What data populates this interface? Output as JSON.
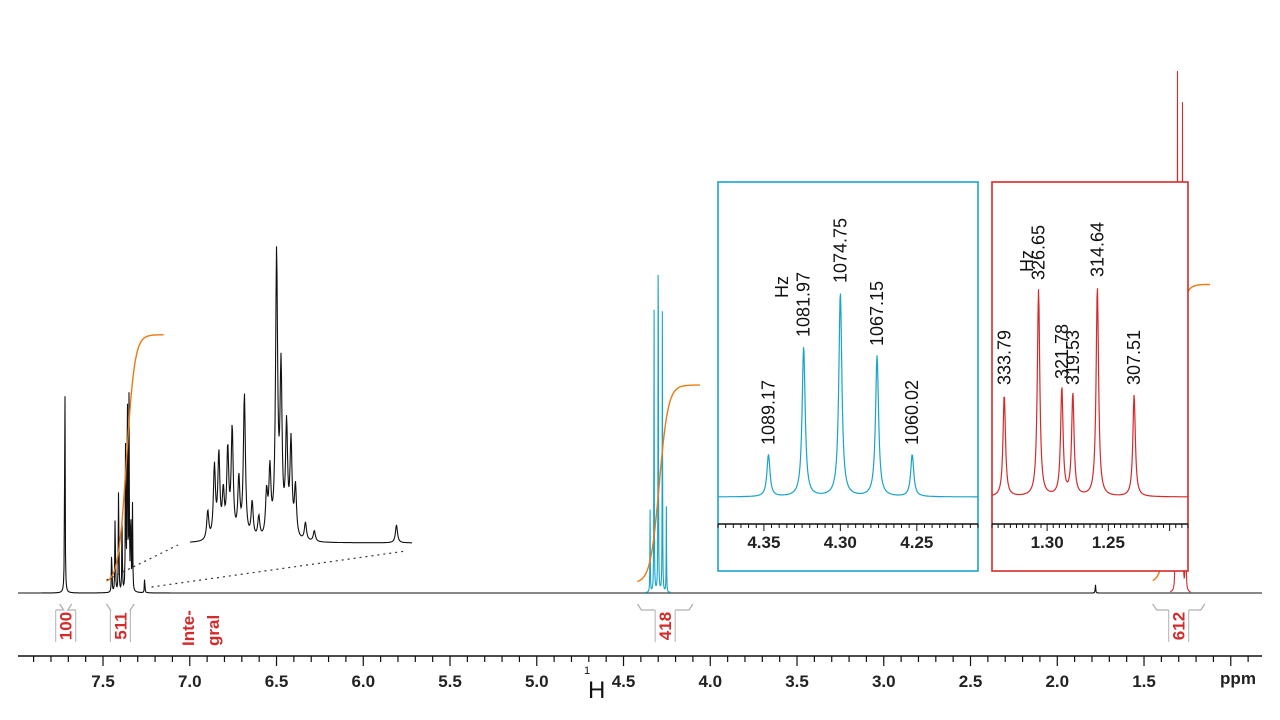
{
  "chart_data": {
    "type": "line",
    "xlabel": "ppm",
    "nucleus": {
      "mass": "1",
      "symbol": "H"
    },
    "xlim": [
      0.82,
      7.99
    ],
    "x_ticks": [
      7.5,
      7.0,
      6.5,
      6.0,
      5.5,
      5.0,
      4.5,
      4.0,
      3.5,
      3.0,
      2.5,
      2.0,
      1.5
    ],
    "x_tick_labels": [
      "7.5",
      "7.0",
      "6.5",
      "6.0",
      "5.5",
      "5.0",
      "4.5",
      "4.0",
      "3.5",
      "3.0",
      "2.5",
      "2.0",
      "1.5"
    ],
    "colors": {
      "spectrum": "#111111",
      "quartet": "#1aa3c9",
      "triplet": "#d42a2a",
      "integral_curve": "#ea7a12",
      "integral_label": "#d42a2a",
      "bracket": "#b0b0b0"
    },
    "peaks": [
      {
        "ppm": 7.72,
        "height": 0.6,
        "color": "#111111"
      },
      {
        "ppm": 7.45,
        "height": 0.12,
        "color": "#111111"
      },
      {
        "ppm": 7.43,
        "height": 0.22,
        "color": "#111111"
      },
      {
        "ppm": 7.41,
        "height": 0.28,
        "color": "#111111"
      },
      {
        "ppm": 7.39,
        "height": 0.18,
        "color": "#111111"
      },
      {
        "ppm": 7.37,
        "height": 0.35,
        "color": "#111111"
      },
      {
        "ppm": 7.36,
        "height": 0.62,
        "color": "#111111"
      },
      {
        "ppm": 7.35,
        "height": 0.45,
        "color": "#111111"
      },
      {
        "ppm": 7.34,
        "height": 0.25,
        "color": "#111111"
      },
      {
        "ppm": 7.33,
        "height": 0.2,
        "color": "#111111"
      },
      {
        "ppm": 7.26,
        "height": 0.04,
        "color": "#111111"
      },
      {
        "ppm": 4.347,
        "height": 0.2,
        "color": "#1aa3c9"
      },
      {
        "ppm": 4.324,
        "height": 0.7,
        "color": "#1aa3c9"
      },
      {
        "ppm": 4.3,
        "height": 0.94,
        "color": "#1aa3c9"
      },
      {
        "ppm": 4.276,
        "height": 0.66,
        "color": "#1aa3c9"
      },
      {
        "ppm": 4.253,
        "height": 0.2,
        "color": "#1aa3c9"
      },
      {
        "ppm": 1.78,
        "height": 0.02,
        "color": "#111111"
      },
      {
        "ppm": 1.319,
        "height": 0.6,
        "color": "#d42a2a"
      },
      {
        "ppm": 1.307,
        "height": 1.23,
        "color": "#d42a2a"
      },
      {
        "ppm": 1.298,
        "height": 0.6,
        "color": "#d42a2a"
      },
      {
        "ppm": 1.29,
        "height": 0.6,
        "color": "#d42a2a"
      },
      {
        "ppm": 1.278,
        "height": 1.25,
        "color": "#d42a2a"
      },
      {
        "ppm": 1.26,
        "height": 0.6,
        "color": "#d42a2a"
      }
    ],
    "integrals": [
      {
        "label": "100",
        "from": 7.75,
        "to": 7.68
      },
      {
        "label": "511",
        "from": 7.48,
        "to": 7.32
      },
      {
        "label": "418",
        "from": 4.42,
        "to": 4.1
      },
      {
        "label": "612",
        "from": 1.45,
        "to": 1.15
      }
    ],
    "integral_legend": [
      "Inte-",
      "gral"
    ],
    "integral_curves": [
      {
        "from": 7.48,
        "to": 7.15,
        "base": 0.03,
        "top": 0.77
      },
      {
        "from": 4.42,
        "to": 4.06,
        "base": 0.03,
        "top": 0.62
      },
      {
        "from": 1.45,
        "to": 1.12,
        "base": 0.03,
        "top": 0.92
      }
    ],
    "aromatic_zoom": {
      "from": 7.48,
      "to": 7.22,
      "peaks": [
        {
          "pos": 0.08,
          "height": 0.08
        },
        {
          "pos": 0.11,
          "height": 0.2
        },
        {
          "pos": 0.13,
          "height": 0.23
        },
        {
          "pos": 0.15,
          "height": 0.12
        },
        {
          "pos": 0.17,
          "height": 0.24
        },
        {
          "pos": 0.19,
          "height": 0.3
        },
        {
          "pos": 0.22,
          "height": 0.16
        },
        {
          "pos": 0.245,
          "height": 0.4
        },
        {
          "pos": 0.28,
          "height": 0.1
        },
        {
          "pos": 0.31,
          "height": 0.06
        },
        {
          "pos": 0.345,
          "height": 0.12
        },
        {
          "pos": 0.36,
          "height": 0.18
        },
        {
          "pos": 0.39,
          "height": 0.78
        },
        {
          "pos": 0.41,
          "height": 0.45
        },
        {
          "pos": 0.435,
          "height": 0.3
        },
        {
          "pos": 0.455,
          "height": 0.26
        },
        {
          "pos": 0.475,
          "height": 0.14
        },
        {
          "pos": 0.52,
          "height": 0.05
        },
        {
          "pos": 0.56,
          "height": 0.03
        },
        {
          "pos": 0.93,
          "height": 0.05
        }
      ]
    },
    "inset_quartet": {
      "xlim": [
        4.38,
        4.21
      ],
      "x_ticks": [
        4.35,
        4.3,
        4.25
      ],
      "x_tick_labels": [
        "4.35",
        "4.30",
        "4.25"
      ],
      "unit_label": "Hz",
      "peaks": [
        {
          "ppm": 4.347,
          "hz": "1089.17",
          "height": 0.14
        },
        {
          "ppm": 4.324,
          "hz": "1081.97",
          "height": 0.5
        },
        {
          "ppm": 4.3,
          "hz": "1074.75",
          "height": 0.68
        },
        {
          "ppm": 4.276,
          "hz": "1067.15",
          "height": 0.47
        },
        {
          "ppm": 4.253,
          "hz": "1060.02",
          "height": 0.14
        }
      ]
    },
    "inset_triplet": {
      "xlim": [
        1.345,
        1.185
      ],
      "x_ticks": [
        1.3,
        1.25
      ],
      "x_tick_labels": [
        "1.30",
        "1.25"
      ],
      "unit_label": "Hz",
      "peaks": [
        {
          "ppm": 1.335,
          "hz": "333.79",
          "height": 0.34
        },
        {
          "ppm": 1.307,
          "hz": "326.65",
          "height": 0.69
        },
        {
          "ppm": 1.288,
          "hz": "321.78",
          "height": 0.36
        },
        {
          "ppm": 1.279,
          "hz": "319.53",
          "height": 0.34
        },
        {
          "ppm": 1.259,
          "hz": "314.64",
          "height": 0.7
        },
        {
          "ppm": 1.229,
          "hz": "307.51",
          "height": 0.34
        }
      ]
    }
  }
}
